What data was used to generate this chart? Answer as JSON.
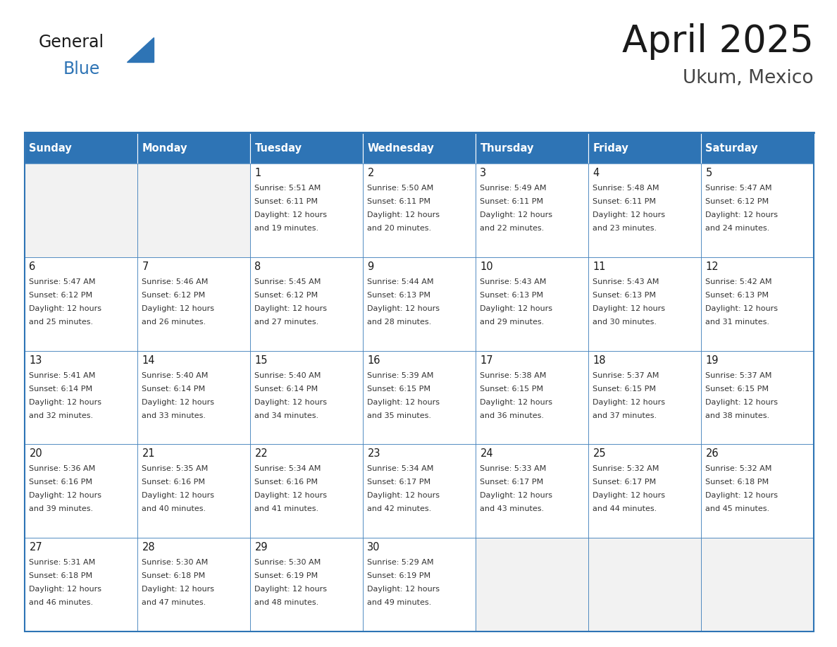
{
  "title": "April 2025",
  "subtitle": "Ukum, Mexico",
  "header_bg": "#2e74b5",
  "header_text_color": "#ffffff",
  "cell_bg_white": "#ffffff",
  "cell_bg_gray": "#f2f2f2",
  "border_color": "#2e74b5",
  "grid_line_color": "#2e74b5",
  "day_names": [
    "Sunday",
    "Monday",
    "Tuesday",
    "Wednesday",
    "Thursday",
    "Friday",
    "Saturday"
  ],
  "title_color": "#1a1a1a",
  "subtitle_color": "#444444",
  "day_number_color": "#1a1a1a",
  "cell_text_color": "#333333",
  "logo_general_color": "#1a1a1a",
  "logo_blue_color": "#2e74b5",
  "calendar": [
    [
      {
        "day": "",
        "sunrise": "",
        "sunset": "",
        "daylight_mins": ""
      },
      {
        "day": "",
        "sunrise": "",
        "sunset": "",
        "daylight_mins": ""
      },
      {
        "day": "1",
        "sunrise": "5:51 AM",
        "sunset": "6:11 PM",
        "daylight_mins": "19"
      },
      {
        "day": "2",
        "sunrise": "5:50 AM",
        "sunset": "6:11 PM",
        "daylight_mins": "20"
      },
      {
        "day": "3",
        "sunrise": "5:49 AM",
        "sunset": "6:11 PM",
        "daylight_mins": "22"
      },
      {
        "day": "4",
        "sunrise": "5:48 AM",
        "sunset": "6:11 PM",
        "daylight_mins": "23"
      },
      {
        "day": "5",
        "sunrise": "5:47 AM",
        "sunset": "6:12 PM",
        "daylight_mins": "24"
      }
    ],
    [
      {
        "day": "6",
        "sunrise": "5:47 AM",
        "sunset": "6:12 PM",
        "daylight_mins": "25"
      },
      {
        "day": "7",
        "sunrise": "5:46 AM",
        "sunset": "6:12 PM",
        "daylight_mins": "26"
      },
      {
        "day": "8",
        "sunrise": "5:45 AM",
        "sunset": "6:12 PM",
        "daylight_mins": "27"
      },
      {
        "day": "9",
        "sunrise": "5:44 AM",
        "sunset": "6:13 PM",
        "daylight_mins": "28"
      },
      {
        "day": "10",
        "sunrise": "5:43 AM",
        "sunset": "6:13 PM",
        "daylight_mins": "29"
      },
      {
        "day": "11",
        "sunrise": "5:43 AM",
        "sunset": "6:13 PM",
        "daylight_mins": "30"
      },
      {
        "day": "12",
        "sunrise": "5:42 AM",
        "sunset": "6:13 PM",
        "daylight_mins": "31"
      }
    ],
    [
      {
        "day": "13",
        "sunrise": "5:41 AM",
        "sunset": "6:14 PM",
        "daylight_mins": "32"
      },
      {
        "day": "14",
        "sunrise": "5:40 AM",
        "sunset": "6:14 PM",
        "daylight_mins": "33"
      },
      {
        "day": "15",
        "sunrise": "5:40 AM",
        "sunset": "6:14 PM",
        "daylight_mins": "34"
      },
      {
        "day": "16",
        "sunrise": "5:39 AM",
        "sunset": "6:15 PM",
        "daylight_mins": "35"
      },
      {
        "day": "17",
        "sunrise": "5:38 AM",
        "sunset": "6:15 PM",
        "daylight_mins": "36"
      },
      {
        "day": "18",
        "sunrise": "5:37 AM",
        "sunset": "6:15 PM",
        "daylight_mins": "37"
      },
      {
        "day": "19",
        "sunrise": "5:37 AM",
        "sunset": "6:15 PM",
        "daylight_mins": "38"
      }
    ],
    [
      {
        "day": "20",
        "sunrise": "5:36 AM",
        "sunset": "6:16 PM",
        "daylight_mins": "39"
      },
      {
        "day": "21",
        "sunrise": "5:35 AM",
        "sunset": "6:16 PM",
        "daylight_mins": "40"
      },
      {
        "day": "22",
        "sunrise": "5:34 AM",
        "sunset": "6:16 PM",
        "daylight_mins": "41"
      },
      {
        "day": "23",
        "sunrise": "5:34 AM",
        "sunset": "6:17 PM",
        "daylight_mins": "42"
      },
      {
        "day": "24",
        "sunrise": "5:33 AM",
        "sunset": "6:17 PM",
        "daylight_mins": "43"
      },
      {
        "day": "25",
        "sunrise": "5:32 AM",
        "sunset": "6:17 PM",
        "daylight_mins": "44"
      },
      {
        "day": "26",
        "sunrise": "5:32 AM",
        "sunset": "6:18 PM",
        "daylight_mins": "45"
      }
    ],
    [
      {
        "day": "27",
        "sunrise": "5:31 AM",
        "sunset": "6:18 PM",
        "daylight_mins": "46"
      },
      {
        "day": "28",
        "sunrise": "5:30 AM",
        "sunset": "6:18 PM",
        "daylight_mins": "47"
      },
      {
        "day": "29",
        "sunrise": "5:30 AM",
        "sunset": "6:19 PM",
        "daylight_mins": "48"
      },
      {
        "day": "30",
        "sunrise": "5:29 AM",
        "sunset": "6:19 PM",
        "daylight_mins": "49"
      },
      {
        "day": "",
        "sunrise": "",
        "sunset": "",
        "daylight_mins": ""
      },
      {
        "day": "",
        "sunrise": "",
        "sunset": "",
        "daylight_mins": ""
      },
      {
        "day": "",
        "sunrise": "",
        "sunset": "",
        "daylight_mins": ""
      }
    ]
  ]
}
